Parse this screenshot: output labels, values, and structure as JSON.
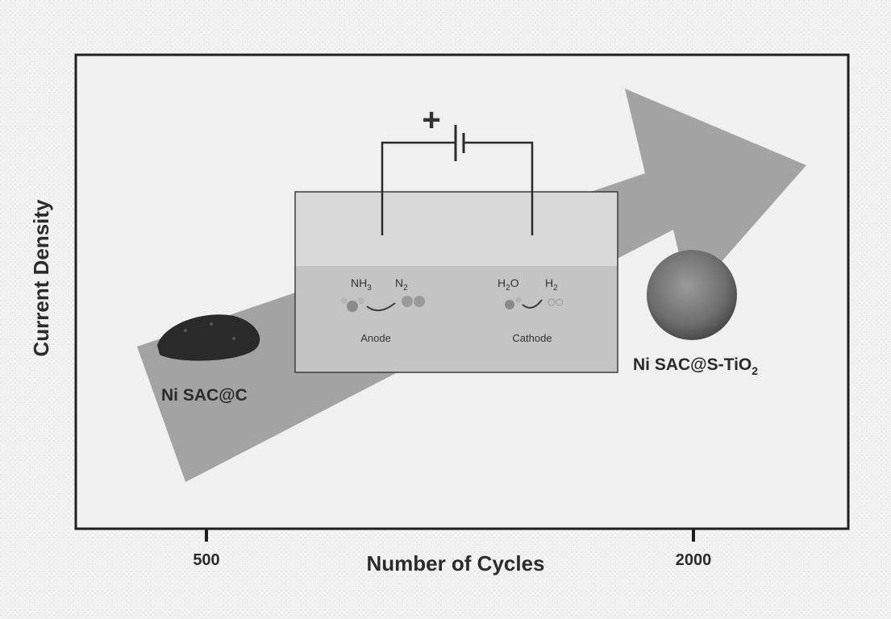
{
  "figure": {
    "y_axis_label": "Current Density",
    "x_axis_label": "Number of Cycles",
    "x_ticks": [
      "500",
      "2000"
    ],
    "colors": {
      "frame": "#1f1f1f",
      "arrow": "#9a9a9a",
      "sample_dark": "#2a2a2a",
      "sample_sphere": "#6e6e6e",
      "inset_bg": "#d9d9d9",
      "inset_liquid": "#c4c4c4"
    }
  },
  "samples": {
    "left_label": "Ni SAC@C",
    "right_label_main": "Ni SAC@S-TiO",
    "right_label_sub": "2"
  },
  "cell": {
    "battery_symbol": "+",
    "anode_label": "Anode",
    "cathode_label": "Cathode",
    "anode_reactant_main": "NH",
    "anode_reactant_sub": "3",
    "anode_product_main": "N",
    "anode_product_sub": "2",
    "cathode_reactant_main": "H",
    "cathode_reactant_sub": "2",
    "cathode_reactant_tail": "O",
    "cathode_product_main": "H",
    "cathode_product_sub": "2"
  }
}
